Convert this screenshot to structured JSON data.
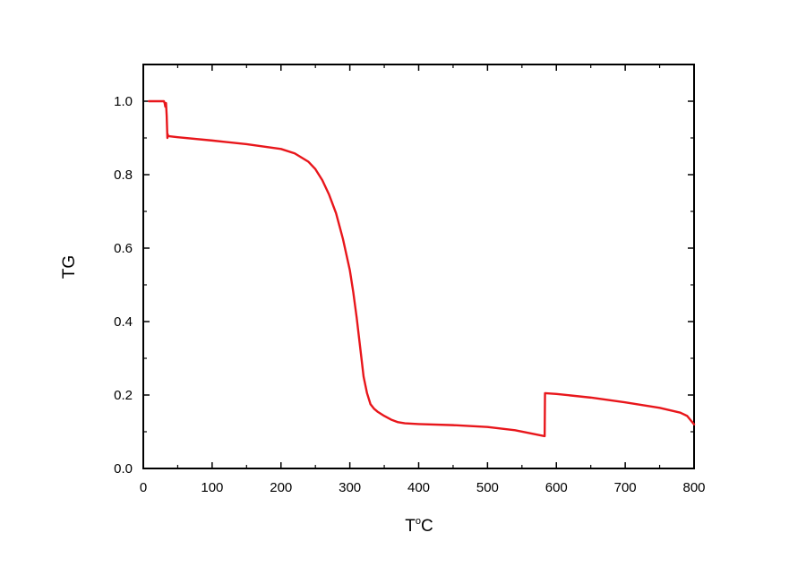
{
  "chart_data": {
    "type": "line",
    "title": "",
    "xlabel": {
      "main": "T",
      "superscript": "o",
      "suffix": "C"
    },
    "ylabel": "TG",
    "xlim": [
      0,
      800
    ],
    "ylim": [
      0,
      1.1
    ],
    "x_ticks": [
      0,
      100,
      200,
      300,
      400,
      500,
      600,
      700,
      800
    ],
    "y_ticks": [
      0.0,
      0.2,
      0.4,
      0.6,
      0.8,
      1.0
    ],
    "x_tick_labels": [
      "0",
      "100",
      "200",
      "300",
      "400",
      "500",
      "600",
      "700",
      "800"
    ],
    "y_tick_labels": [
      "0.0",
      "0.2",
      "0.4",
      "0.6",
      "0.8",
      "1.0"
    ],
    "grid": false,
    "legend": "none",
    "series": [
      {
        "color": "#e8161b",
        "x": [
          8,
          30,
          31,
          32,
          33,
          34,
          35,
          35.5,
          36,
          50,
          100,
          150,
          200,
          220,
          240,
          250,
          260,
          270,
          280,
          290,
          300,
          305,
          310,
          315,
          320,
          325,
          330,
          335,
          340,
          350,
          360,
          370,
          380,
          400,
          450,
          500,
          540,
          583,
          583.5,
          600,
          650,
          700,
          750,
          780,
          790,
          800
        ],
        "y": [
          1.0,
          1.0,
          0.995,
          0.985,
          0.995,
          0.96,
          0.9,
          0.91,
          0.905,
          0.902,
          0.893,
          0.883,
          0.87,
          0.858,
          0.835,
          0.815,
          0.785,
          0.745,
          0.695,
          0.625,
          0.54,
          0.48,
          0.41,
          0.33,
          0.25,
          0.205,
          0.175,
          0.163,
          0.155,
          0.143,
          0.133,
          0.126,
          0.123,
          0.121,
          0.118,
          0.113,
          0.104,
          0.088,
          0.205,
          0.203,
          0.193,
          0.18,
          0.165,
          0.152,
          0.143,
          0.12
        ]
      }
    ]
  },
  "colors": {
    "line": "#e8161b",
    "axes": "#000000",
    "background": "#ffffff"
  }
}
